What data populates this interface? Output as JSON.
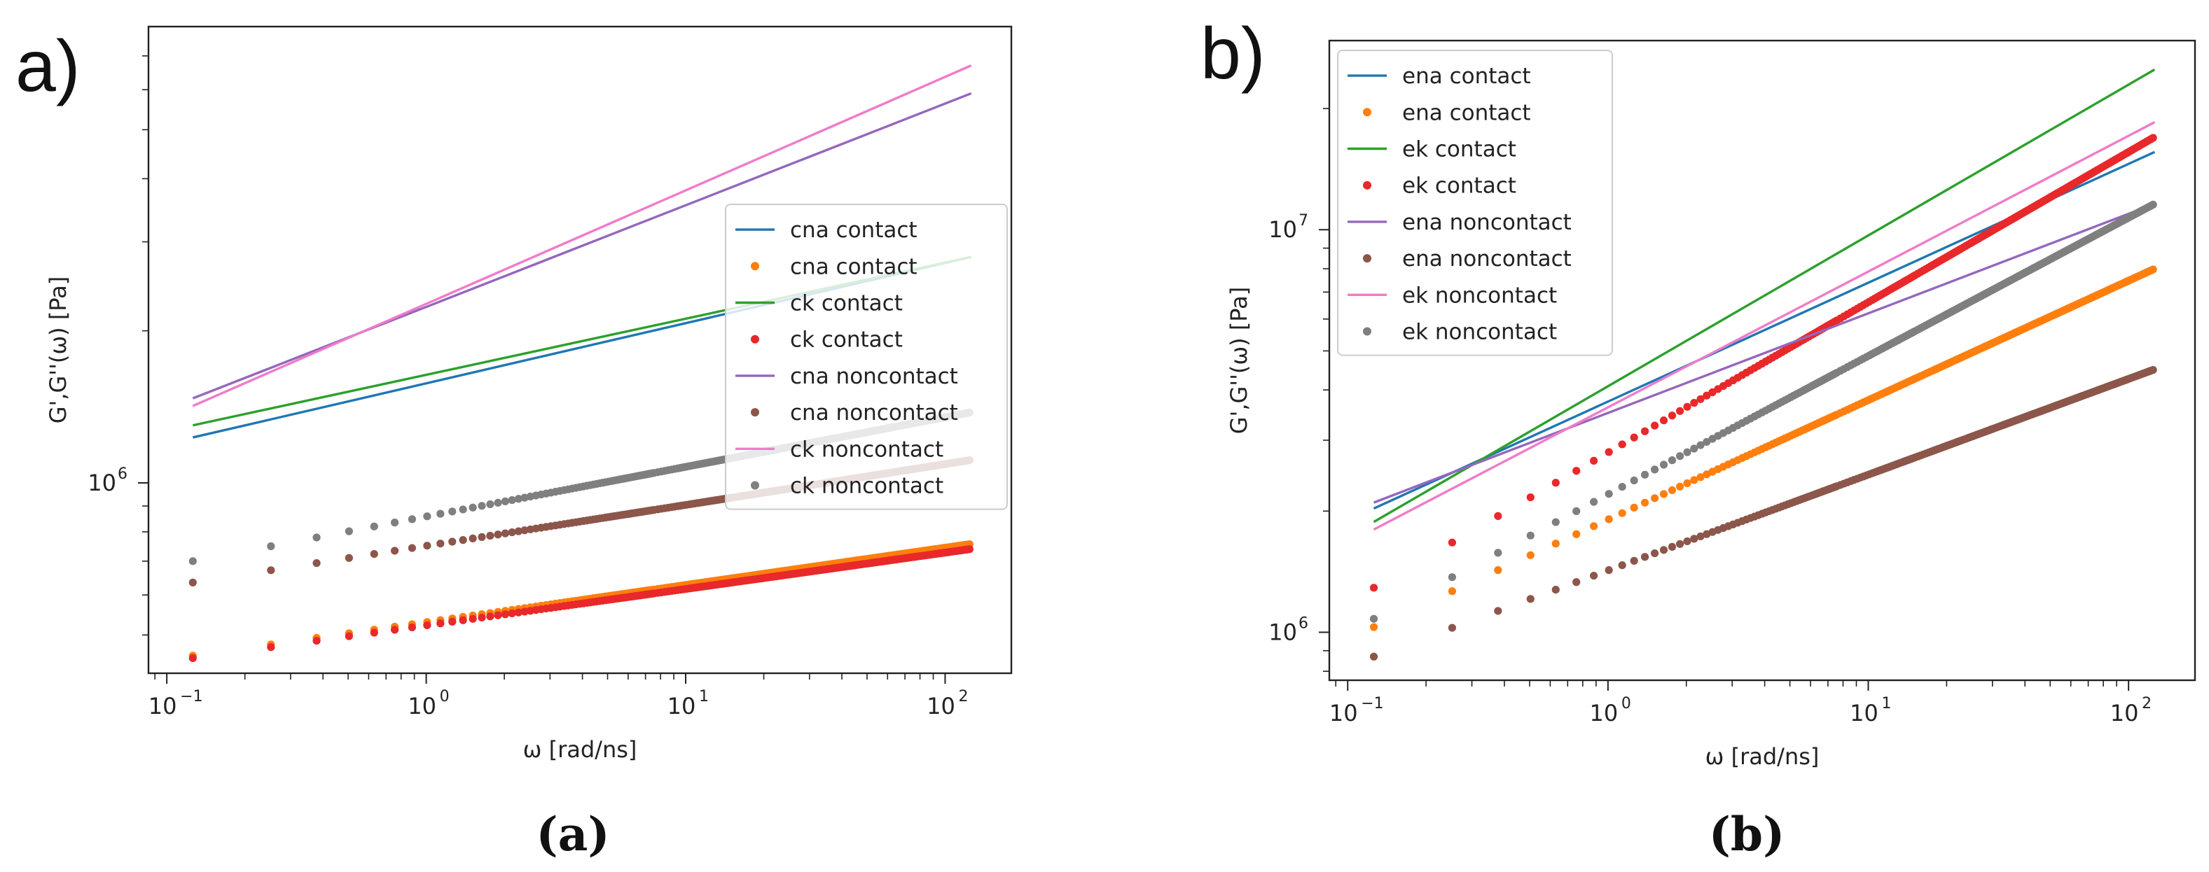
{
  "figure": {
    "panel_letters": [
      "a)",
      "b)"
    ],
    "captions": [
      "(a)",
      "(b)"
    ]
  },
  "chart_data": [
    {
      "type": "line",
      "scale": "log-log",
      "xlabel": "ω [rad/ns]",
      "ylabel": "G',G''(ω) [Pa]",
      "xlim": [
        0.085,
        180
      ],
      "ylim": [
        420000,
        8000000
      ],
      "xticks": [
        {
          "value": 0.1,
          "base": "10",
          "exp": "−1"
        },
        {
          "value": 1,
          "base": "10",
          "exp": "0"
        },
        {
          "value": 10,
          "base": "10",
          "exp": "1"
        },
        {
          "value": 100,
          "base": "10",
          "exp": "2"
        }
      ],
      "yticks": [
        {
          "value": 1000000,
          "base": "10",
          "exp": "6"
        }
      ],
      "legend_position": "center-right",
      "x_range": [
        0.126,
        126
      ],
      "series": [
        {
          "name": "cna contact",
          "kind": "line",
          "color": "#1f77b4",
          "y_start": 1230000,
          "y_end": 2800000
        },
        {
          "name": "cna contact",
          "kind": "dots",
          "color": "#ff7f0e",
          "y_start": 455000,
          "y_end": 757000
        },
        {
          "name": "ck contact",
          "kind": "line",
          "color": "#2ca02c",
          "y_start": 1300000,
          "y_end": 2800000
        },
        {
          "name": "ck contact",
          "kind": "dots",
          "color": "#e8282a",
          "y_start": 450000,
          "y_end": 740000
        },
        {
          "name": "cna noncontact",
          "kind": "line",
          "color": "#9467bd",
          "y_start": 1470000,
          "y_end": 5900000
        },
        {
          "name": "cna noncontact",
          "kind": "dots",
          "color": "#8c564b",
          "y_start": 635000,
          "y_end": 1110000
        },
        {
          "name": "ck noncontact",
          "kind": "line",
          "color": "#f07bc9",
          "y_start": 1420000,
          "y_end": 6700000
        },
        {
          "name": "ck noncontact",
          "kind": "dots",
          "color": "#7f7f7f",
          "y_start": 700000,
          "y_end": 1380000
        }
      ]
    },
    {
      "type": "line",
      "scale": "log-log",
      "xlabel": "ω [rad/ns]",
      "ylabel": "G',G''(ω) [Pa]",
      "xlim": [
        0.085,
        180
      ],
      "ylim": [
        760000,
        29500000
      ],
      "xticks": [
        {
          "value": 0.1,
          "base": "10",
          "exp": "−1"
        },
        {
          "value": 1,
          "base": "10",
          "exp": "0"
        },
        {
          "value": 10,
          "base": "10",
          "exp": "1"
        },
        {
          "value": 100,
          "base": "10",
          "exp": "2"
        }
      ],
      "yticks": [
        {
          "value": 1000000,
          "base": "10",
          "exp": "6"
        },
        {
          "value": 10000000,
          "base": "10",
          "exp": "7"
        }
      ],
      "legend_position": "top-left",
      "x_range": [
        0.126,
        126
      ],
      "series": [
        {
          "name": "ena contact",
          "kind": "line",
          "color": "#1f77b4",
          "y_start": 2030000,
          "y_end": 15600000
        },
        {
          "name": "ena contact",
          "kind": "dots",
          "color": "#ff7f0e",
          "y_start": 1030000,
          "y_end": 8000000
        },
        {
          "name": "ek contact",
          "kind": "line",
          "color": "#2ca02c",
          "y_start": 1880000,
          "y_end": 25000000
        },
        {
          "name": "ek contact",
          "kind": "dots",
          "color": "#e8282a",
          "y_start": 1290000,
          "y_end": 17000000
        },
        {
          "name": "ena noncontact",
          "kind": "line",
          "color": "#9467bd",
          "y_start": 2100000,
          "y_end": 11600000
        },
        {
          "name": "ena noncontact",
          "kind": "dots",
          "color": "#8c564b",
          "y_start": 870000,
          "y_end": 4500000
        },
        {
          "name": "ek noncontact",
          "kind": "line",
          "color": "#f07bc9",
          "y_start": 1800000,
          "y_end": 18500000
        },
        {
          "name": "ek noncontact",
          "kind": "dots",
          "color": "#7f7f7f",
          "y_start": 1080000,
          "y_end": 11600000
        }
      ]
    }
  ]
}
